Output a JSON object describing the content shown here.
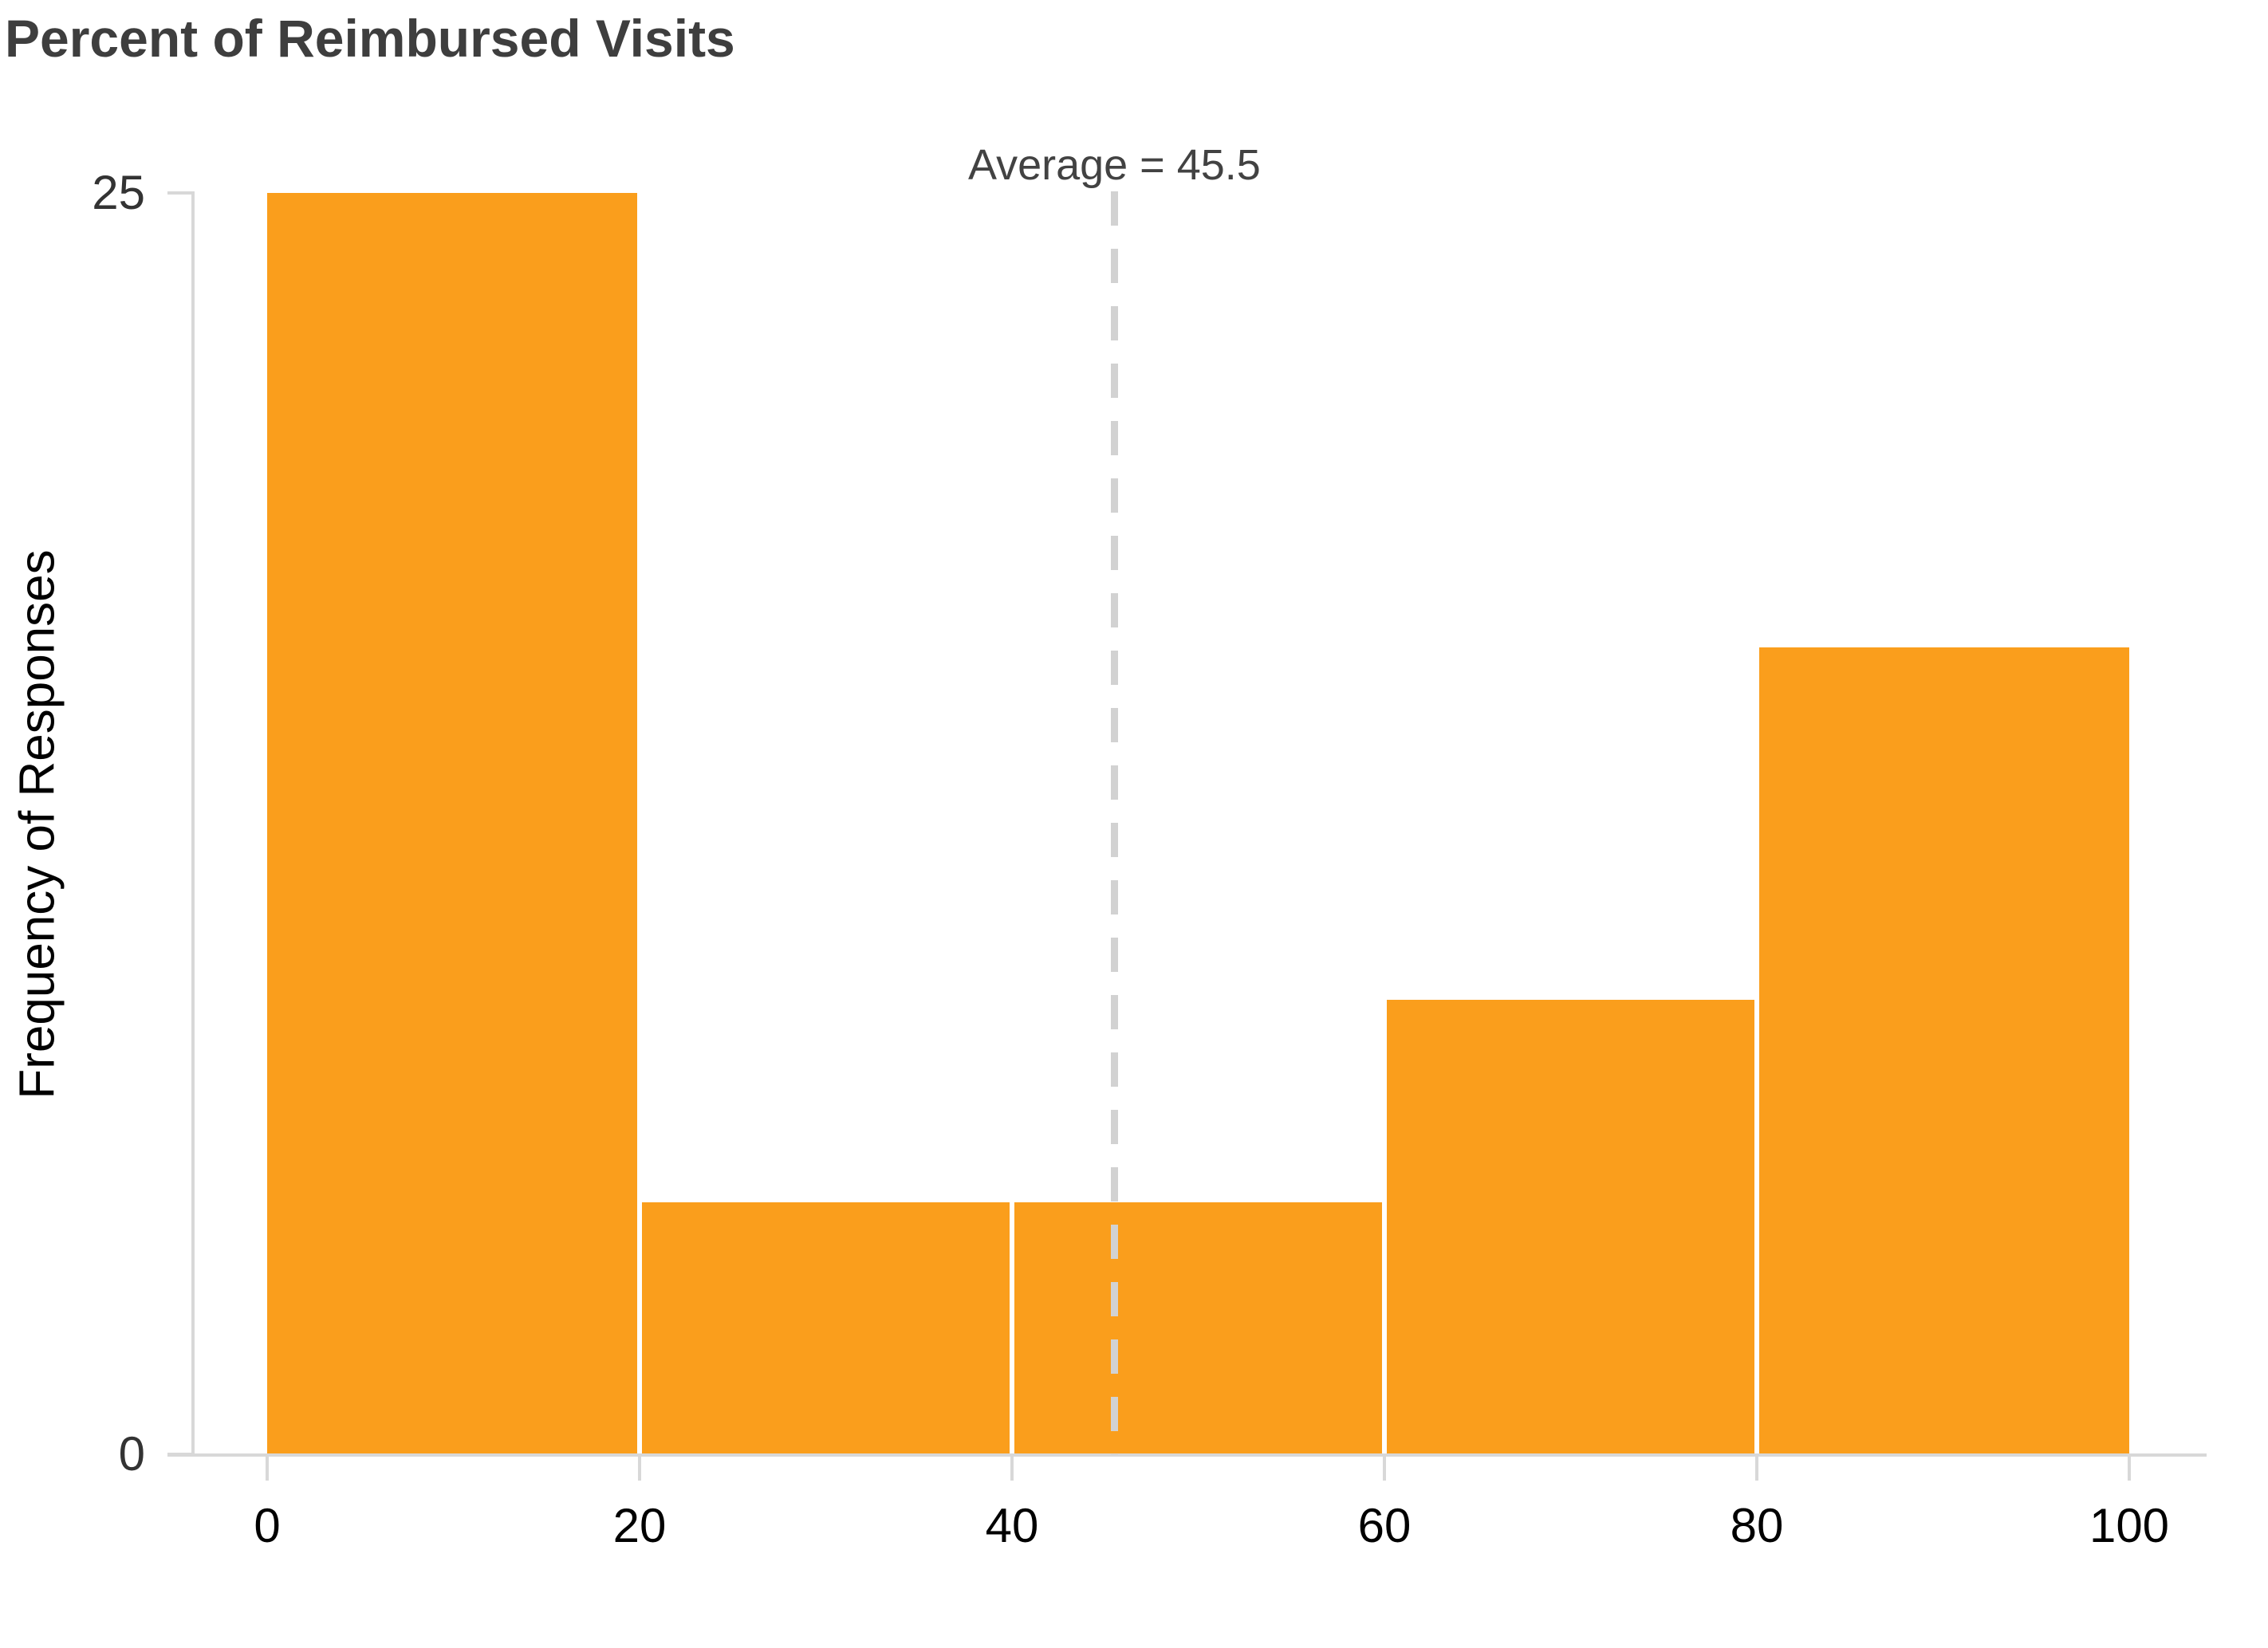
{
  "title": "Percent of Reimbursed Visits",
  "chart_data": {
    "type": "bar",
    "subtype": "histogram",
    "title": "Percent of Reimbursed Visits",
    "xlabel": "",
    "ylabel": "Frequency of Responses",
    "bins": [
      {
        "range": [
          0,
          20
        ],
        "value": 25
      },
      {
        "range": [
          20,
          40
        ],
        "value": 5
      },
      {
        "range": [
          40,
          60
        ],
        "value": 5
      },
      {
        "range": [
          60,
          80
        ],
        "value": 9
      },
      {
        "range": [
          80,
          100
        ],
        "value": 16
      }
    ],
    "xticks": [
      0,
      20,
      40,
      60,
      80,
      100
    ],
    "yticks": [
      0,
      25
    ],
    "xlim": [
      0,
      100
    ],
    "ylim": [
      0,
      25
    ],
    "average": 45.5,
    "annotation": "Average = 45.5",
    "bar_color": "#FA9E1C",
    "bar_gap_color": "#FFFFFF",
    "axis_color": "#D8D8D8",
    "dash_color": "#D2D2D2",
    "grid": false,
    "legend": false
  }
}
